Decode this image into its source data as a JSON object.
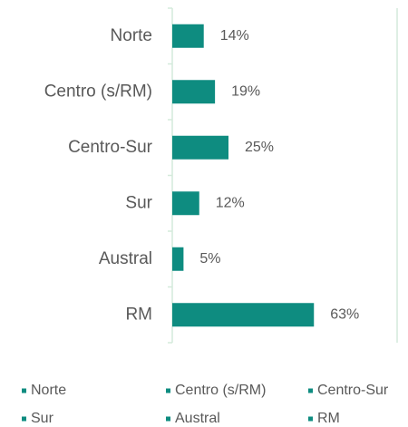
{
  "chart_data": {
    "type": "bar",
    "orientation": "horizontal",
    "categories": [
      "Norte",
      "Centro (s/RM)",
      "Centro-Sur",
      "Sur",
      "Austral",
      "RM"
    ],
    "values": [
      14,
      19,
      25,
      12,
      5,
      63
    ],
    "value_labels": [
      "14%",
      "19%",
      "25%",
      "12%",
      "5%",
      "63%"
    ],
    "color": "#0e8c80",
    "xlim": [
      0,
      100
    ],
    "legend": "bottom"
  }
}
